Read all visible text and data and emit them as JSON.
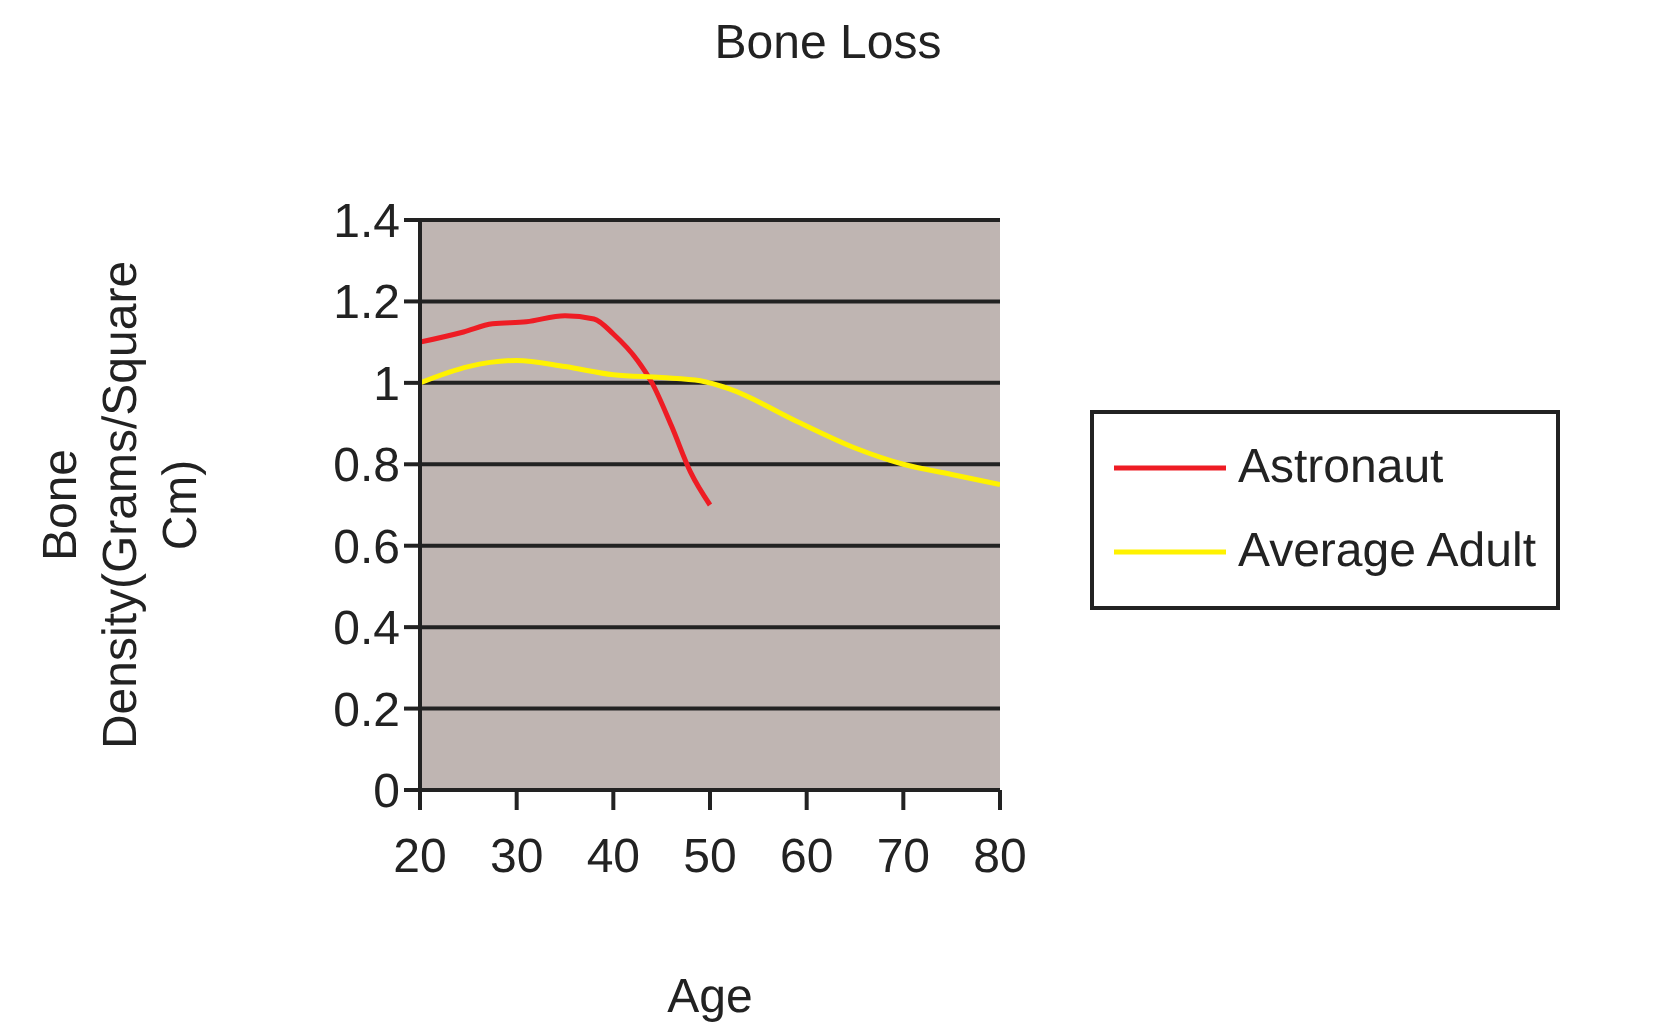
{
  "chart_data": {
    "type": "line",
    "title": "Bone Loss",
    "xlabel": "Age",
    "ylabel": "Bone Density(Grams/Square Cm)",
    "xlim": [
      20,
      80
    ],
    "xticks": [
      20,
      30,
      40,
      50,
      60,
      70,
      80
    ],
    "ylim": [
      0,
      1.4
    ],
    "yticks": [
      0,
      0.2,
      0.4,
      0.6,
      0.8,
      1,
      1.2,
      1.4
    ],
    "grid": "y",
    "legend": "right",
    "marker": "none",
    "line_style": "solid",
    "series": [
      {
        "name": "Astronaut",
        "color": "#ee1c24",
        "x": [
          20,
          24.5,
          27.5,
          31,
          35,
          38,
          40,
          42.5,
          44,
          46,
          48,
          50
        ],
        "values": [
          1.1,
          1.125,
          1.145,
          1.15,
          1.165,
          1.157,
          1.12,
          1.055,
          1.0,
          0.895,
          0.78,
          0.7
        ]
      },
      {
        "name": "Average Adult",
        "color": "#fff200",
        "x": [
          20,
          25,
          30,
          35,
          40,
          45,
          49,
          52,
          59,
          65,
          70,
          75,
          80
        ],
        "values": [
          1.0,
          1.04,
          1.055,
          1.04,
          1.02,
          1.013,
          1.005,
          0.985,
          0.905,
          0.84,
          0.8,
          0.775,
          0.75
        ]
      }
    ]
  }
}
